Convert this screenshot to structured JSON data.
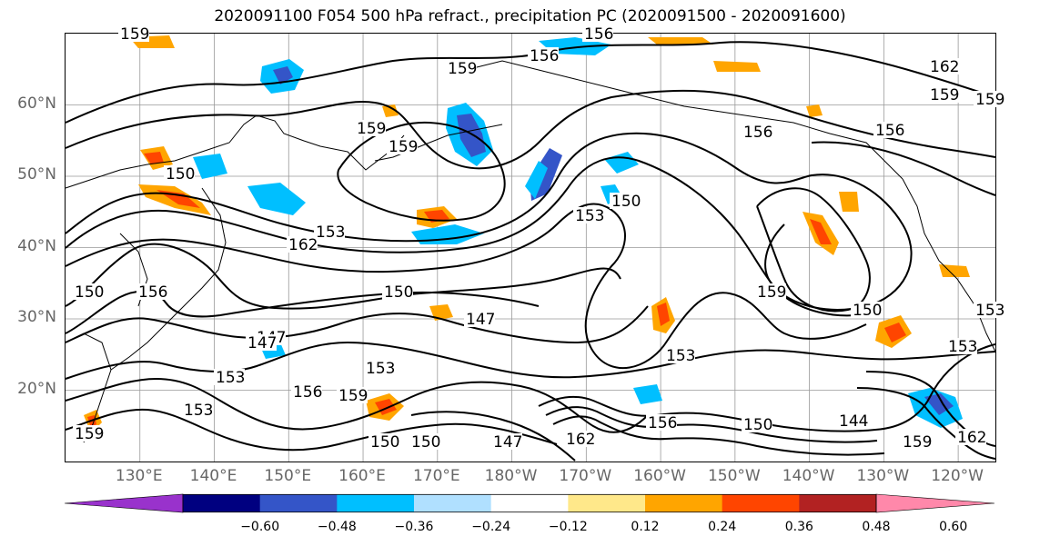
{
  "title": "2020091100 F054 500 hPa refract., precipitation PC (2020091500 - 2020091600)",
  "lat_labels": [
    {
      "text": "60°N",
      "lat": 60
    },
    {
      "text": "50°N",
      "lat": 50
    },
    {
      "text": "40°N",
      "lat": 40
    },
    {
      "text": "30°N",
      "lat": 30
    },
    {
      "text": "20°N",
      "lat": 20
    }
  ],
  "lon_labels": [
    {
      "text": "130°E",
      "lon": 130
    },
    {
      "text": "140°E",
      "lon": 140
    },
    {
      "text": "150°E",
      "lon": 150
    },
    {
      "text": "160°E",
      "lon": 160
    },
    {
      "text": "170°E",
      "lon": 170
    },
    {
      "text": "180°W",
      "lon": 180
    },
    {
      "text": "170°W",
      "lon": 190
    },
    {
      "text": "160°W",
      "lon": 200
    },
    {
      "text": "150°W",
      "lon": 210
    },
    {
      "text": "140°W",
      "lon": 220
    },
    {
      "text": "130°W",
      "lon": 230
    },
    {
      "text": "120°W",
      "lon": 240
    }
  ],
  "map_extent": {
    "lon_min": 120,
    "lon_max": 245,
    "lat_min": 10,
    "lat_max": 70
  },
  "contour_labels": [
    "159",
    "156",
    "156",
    "159",
    "162",
    "159",
    "156",
    "159",
    "159",
    "150",
    "153",
    "162",
    "153",
    "150",
    "150",
    "156",
    "159",
    "150",
    "153",
    "150",
    "147",
    "147",
    "147",
    "153",
    "153",
    "156",
    "159",
    "153",
    "159",
    "150",
    "147",
    "162",
    "153",
    "156",
    "150",
    "144",
    "153",
    "159",
    "162",
    "156",
    "159",
    "150"
  ],
  "colorbar": {
    "colors": [
      "#9932CC",
      "#000080",
      "#3455C8",
      "#00BFFF",
      "#B0E0FF",
      "#FFFFFF",
      "#FFE88A",
      "#FFA500",
      "#FF4500",
      "#B22222",
      "#FF88AA"
    ],
    "tick_labels": [
      "−0.60",
      "−0.48",
      "−0.36",
      "−0.24",
      "−0.12",
      "0.12",
      "0.24",
      "0.36",
      "0.48",
      "0.60"
    ],
    "tick_values": [
      -0.6,
      -0.48,
      -0.36,
      -0.24,
      -0.12,
      0.12,
      0.24,
      0.36,
      0.48,
      0.6
    ],
    "extend": "both"
  },
  "colors": {
    "coast": "#000000",
    "grid": "#999999",
    "contour": "#000000"
  }
}
